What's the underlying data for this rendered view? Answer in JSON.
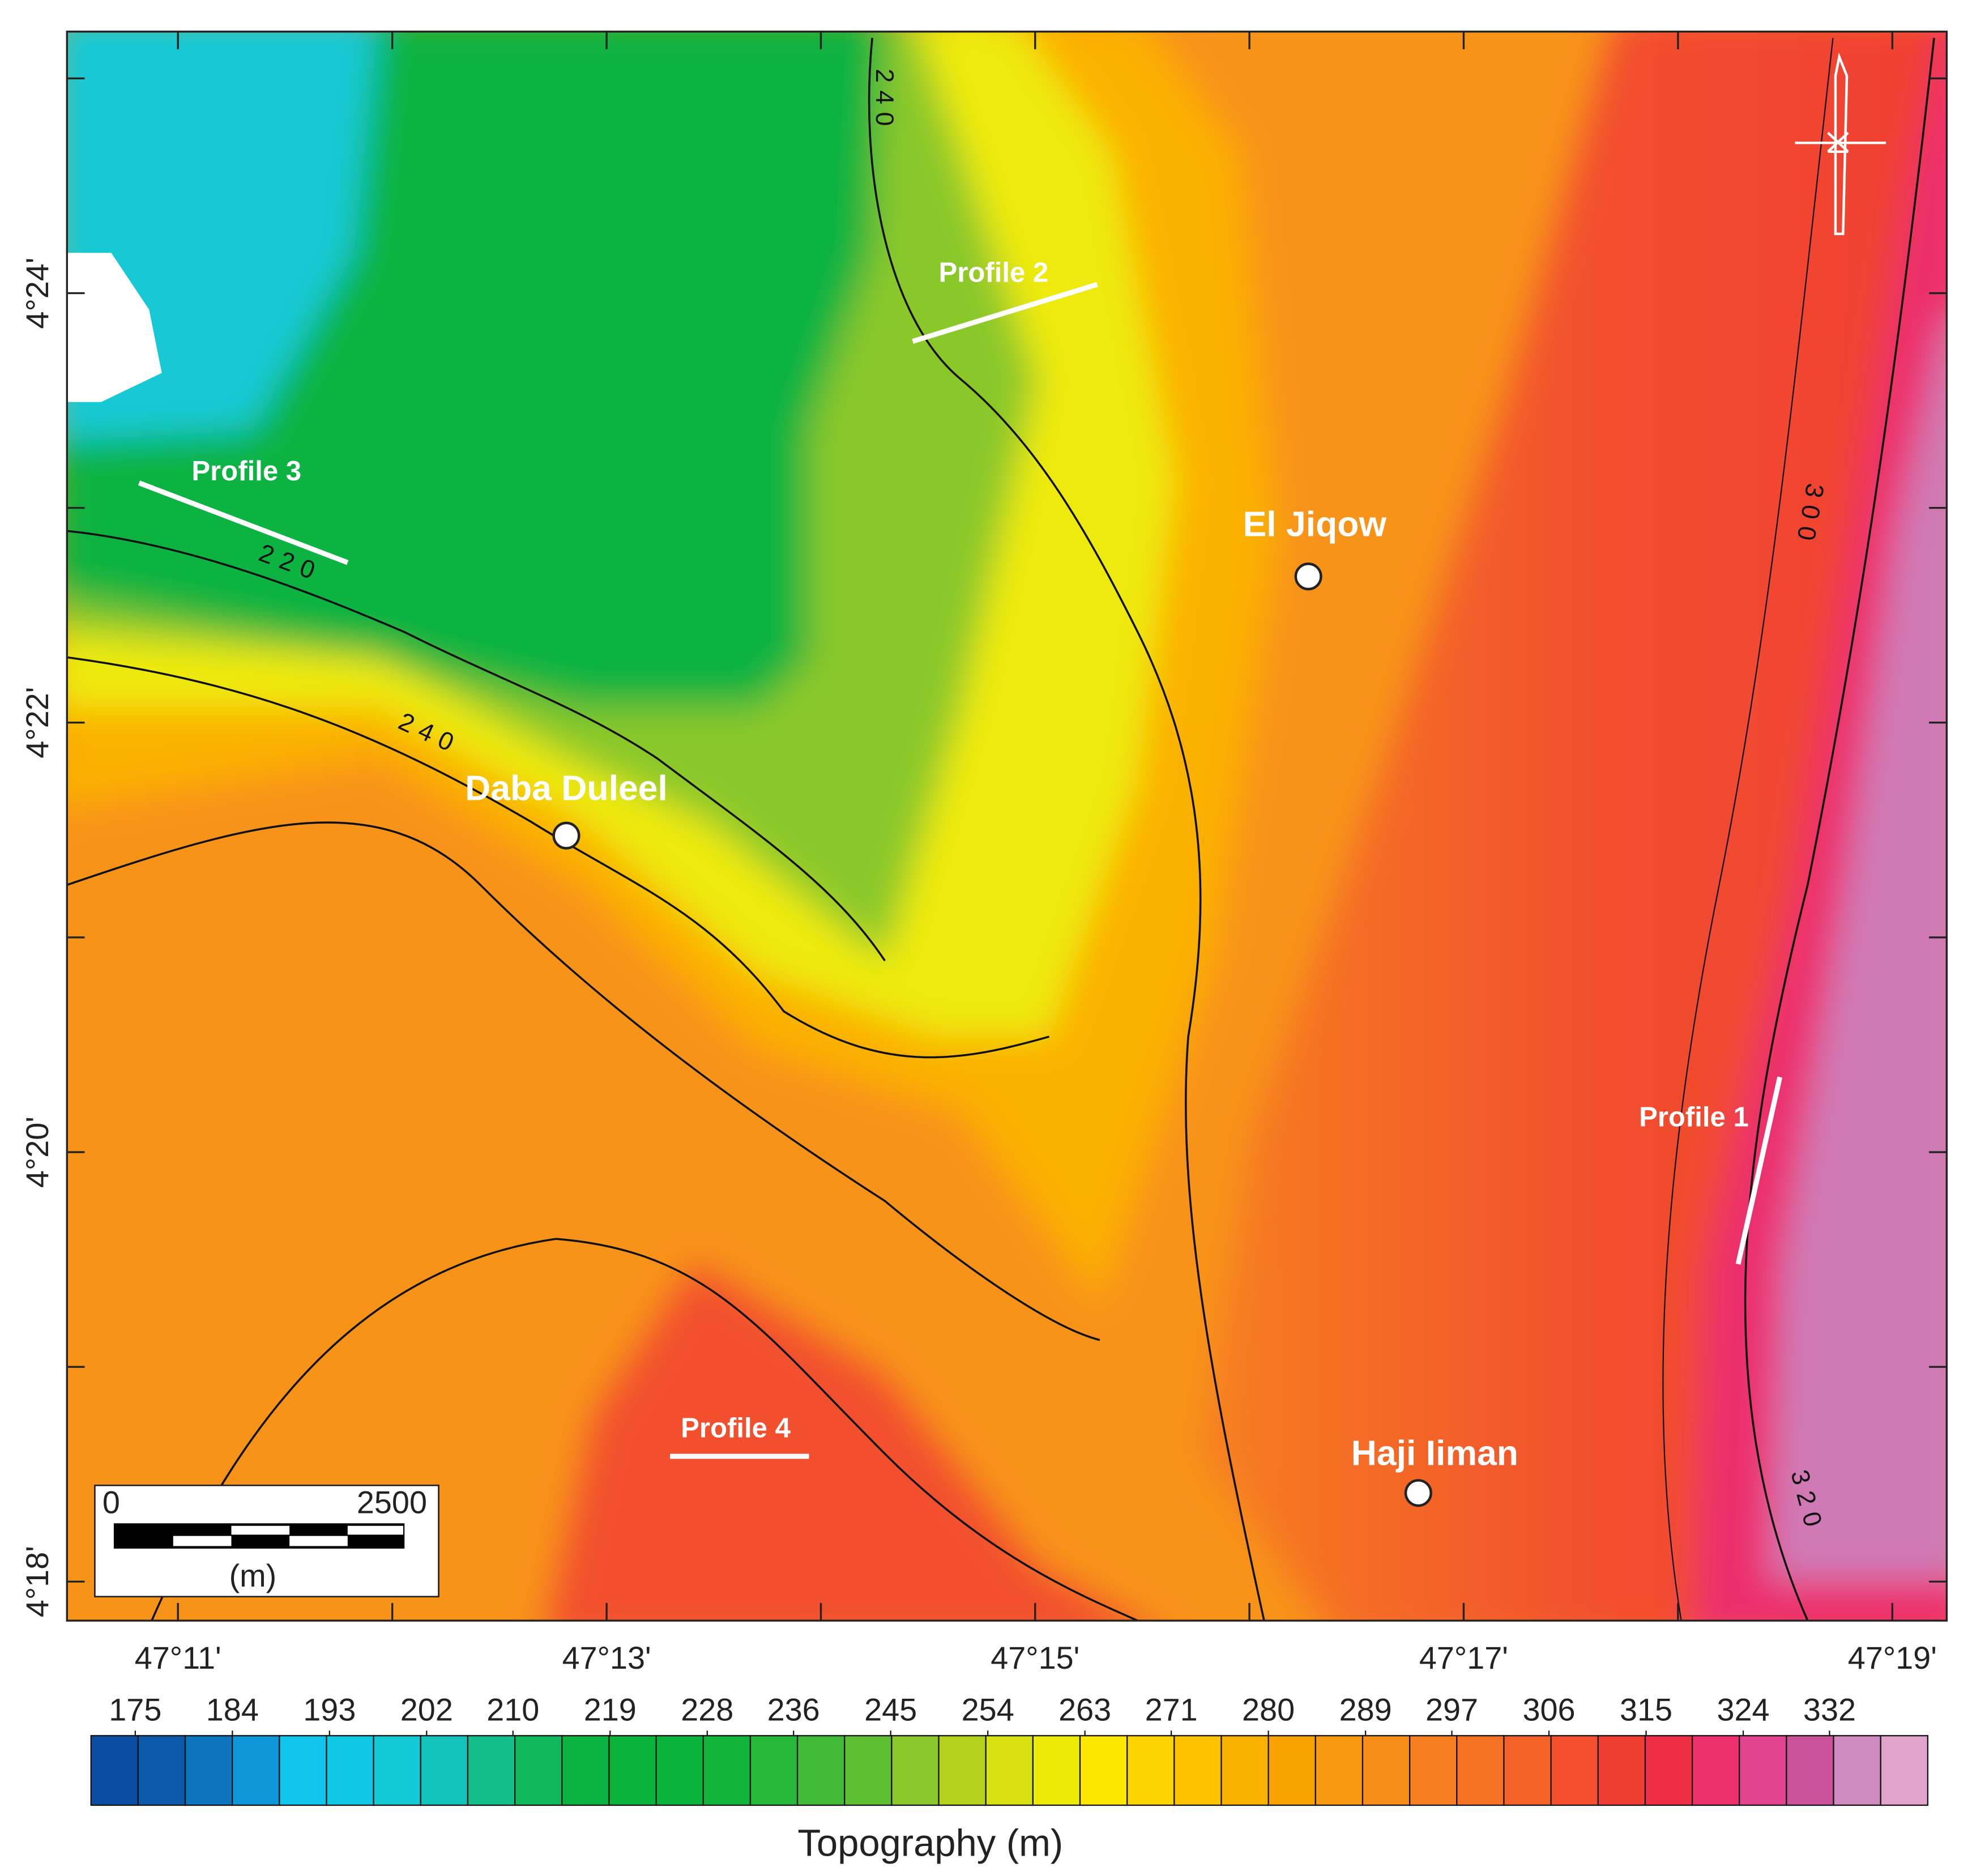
{
  "map": {
    "lon_axis": {
      "lim": [
        47.1747,
        47.3209
      ],
      "ticks": [
        {
          "value": 47.18333,
          "label": "47°11'"
        },
        {
          "value": 47.21667,
          "label": "47°13'"
        },
        {
          "value": 47.25,
          "label": "47°15'"
        },
        {
          "value": 47.28333,
          "label": "47°17'"
        },
        {
          "value": 47.31667,
          "label": "47°19'"
        }
      ]
    },
    "lat_axis": {
      "lim": [
        4.29697,
        4.4203
      ],
      "ticks": [
        {
          "value": 4.4,
          "label": "4°24'"
        },
        {
          "value": 4.36667,
          "label": "4°22'"
        },
        {
          "value": 4.33333,
          "label": "4°20'"
        },
        {
          "value": 4.3,
          "label": "4°18'"
        }
      ]
    },
    "places": [
      {
        "label": "El Jiqow"
      },
      {
        "label": "Daba Duleel"
      },
      {
        "label": "Haji Iiman"
      }
    ],
    "profiles": [
      {
        "label": "Profile 1"
      },
      {
        "label": "Profile 2"
      },
      {
        "label": "Profile 3"
      },
      {
        "label": "Profile 4"
      }
    ],
    "contour_labels": [
      "240",
      "220",
      "240",
      "300",
      "320"
    ],
    "scale_bar": {
      "labels": [
        "0",
        "2500"
      ],
      "unit": "(m)"
    },
    "colorbar": {
      "lim": [
        170.9,
        341.1
      ],
      "ticks": [
        175,
        184,
        193,
        202,
        210,
        219,
        228,
        236,
        245,
        254,
        263,
        271,
        280,
        289,
        297,
        306,
        315,
        324,
        332
      ],
      "colors": [
        "#0a4ea2",
        "#0b5aaa",
        "#0d74bd",
        "#0e96d6",
        "#10c4ee",
        "#0fc8e6",
        "#12c9d5",
        "#14c3bb",
        "#12bf8a",
        "#0fb85a",
        "#0cb33f",
        "#0ab33a",
        "#0ab43a",
        "#10b53a",
        "#27b83a",
        "#40bb36",
        "#5ebf32",
        "#8ac82b",
        "#b4d21c",
        "#d8e00f",
        "#eeea07",
        "#fbe700",
        "#fdd400",
        "#fdc300",
        "#fbb100",
        "#f9a300",
        "#f89a10",
        "#f78e18",
        "#f6801f",
        "#f57225",
        "#f4622a",
        "#f2502e",
        "#f03d33",
        "#ed2e45",
        "#ec2f6d",
        "#e2448f",
        "#c9529b",
        "#cf8abf",
        "#e1a5cc"
      ],
      "label": "Topography (m)"
    }
  }
}
